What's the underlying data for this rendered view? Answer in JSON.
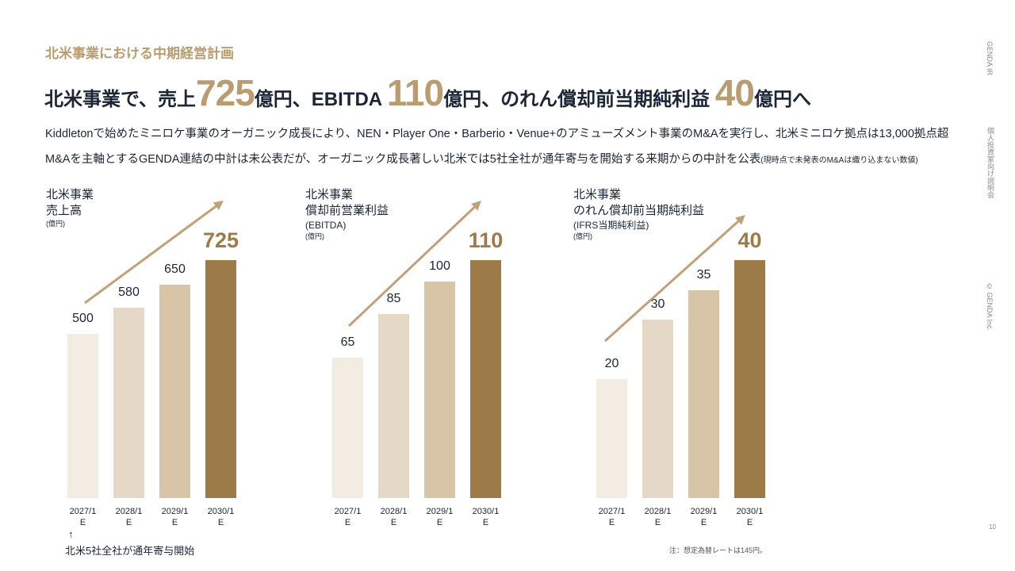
{
  "section_title": "北米事業における中期経営計画",
  "headline": {
    "p1": "北米事業で、売上",
    "n1": "725",
    "p2": "億円、EBITDA ",
    "n2": "110",
    "p3": "億円、のれん償却前当期純利益 ",
    "n3": "40",
    "p4": "億円へ"
  },
  "body": {
    "line1": "Kiddletonで始めたミニロケ事業のオーガニック成長により、NEN・Player One・Barberio・Venue+のアミューズメント事業のM&Aを実行し、北米ミニロケ拠点は13,000拠点超",
    "line2": "M&Aを主軸とするGENDA連結の中計は未公表だが、オーガニック成長著しい北米では5社全社が通年寄与を開始する来期からの中計を公表",
    "line2_note": "(現時点で未発表のM&Aは織り込まない数値)"
  },
  "side": {
    "top": "GENDA IR",
    "middle": "個人投資家向け説明会",
    "bottom": "© GENDA Inc."
  },
  "page_number": "10",
  "footnote": "注：想定為替レートは145円。",
  "annotation": {
    "arrow": "↑",
    "text": "北米5社全社が通年寄与開始"
  },
  "colors": {
    "accent": "#b99c6f",
    "bars": [
      "#f3ece3",
      "#e5d8c6",
      "#d8c4a6",
      "#9c7b48"
    ],
    "arrow": "#bfa27a"
  },
  "chart_data": [
    {
      "type": "bar",
      "title": "北米事業",
      "title2": "売上高",
      "subtitle": "",
      "unit": "(億円)",
      "categories": [
        "2027/1\nE",
        "2028/1\nE",
        "2029/1\nE",
        "2030/1\nE"
      ],
      "values": [
        500,
        580,
        650,
        725
      ]
    },
    {
      "type": "bar",
      "title": "北米事業",
      "title2": "償却前営業利益",
      "subtitle": "(EBITDA)",
      "unit": "(億円)",
      "categories": [
        "2027/1\nE",
        "2028/1\nE",
        "2029/1\nE",
        "2030/1\nE"
      ],
      "values": [
        65,
        85,
        100,
        110
      ]
    },
    {
      "type": "bar",
      "title": "北米事業",
      "title2": "のれん償却前当期純利益",
      "subtitle": "(IFRS当期純利益)",
      "unit": "(億円)",
      "categories": [
        "2027/1\nE",
        "2028/1\nE",
        "2029/1\nE",
        "2030/1\nE"
      ],
      "values": [
        20,
        30,
        35,
        40
      ]
    }
  ]
}
